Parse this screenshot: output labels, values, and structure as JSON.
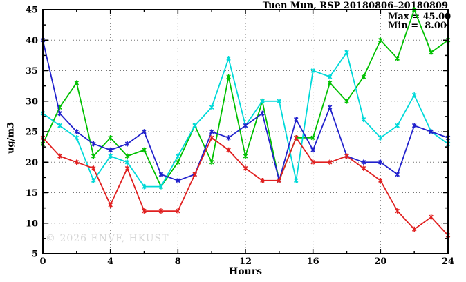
{
  "title": "Tuen Mun, RSP 20180806–20180809",
  "legend": {
    "max_label": "Max = 45.00",
    "min_label": "Min =  8.00"
  },
  "watermark": "© 2026 ENVF, HKUST",
  "colors": {
    "green": "#00c000",
    "cyan": "#00d9d9",
    "blue": "#2121cc",
    "red": "#e02020",
    "grid": "#777777",
    "frame": "#000000",
    "watermark_gray": "#d6d6d6"
  },
  "chart_data": {
    "type": "line",
    "title": "Tuen Mun, RSP 20180806–20180809",
    "xlabel": "Hours",
    "ylabel": "ug/m3",
    "xlim": [
      0,
      24
    ],
    "ylim": [
      5,
      45
    ],
    "x_major_ticks": [
      0,
      4,
      8,
      12,
      16,
      20,
      24
    ],
    "x_minor_ticks": [
      2,
      6,
      10,
      14,
      18,
      22
    ],
    "y_major_ticks": [
      5,
      10,
      15,
      20,
      25,
      30,
      35,
      40,
      45
    ],
    "y_minor_ticks": [
      7.5,
      12.5,
      17.5,
      22.5,
      27.5,
      32.5,
      37.5,
      42.5
    ],
    "grid_x_lines": [
      4,
      8,
      12,
      16,
      20
    ],
    "grid_y_lines": [
      10,
      15,
      20,
      25,
      30,
      35,
      40
    ],
    "grid": "dotted",
    "legend_position": "top-right-inside",
    "marker": "asterisk",
    "x": [
      0,
      1,
      2,
      3,
      4,
      5,
      6,
      7,
      8,
      9,
      10,
      11,
      12,
      13,
      14,
      15,
      16,
      17,
      18,
      19,
      20,
      21,
      22,
      23,
      24
    ],
    "series": [
      {
        "name": "series-green",
        "color": "#00c000",
        "values": [
          23,
          29,
          33,
          21,
          24,
          21,
          22,
          16,
          20,
          26,
          20,
          34,
          21,
          30,
          17,
          24,
          24,
          33,
          30,
          34,
          40,
          37,
          45,
          38,
          40
        ]
      },
      {
        "name": "series-cyan",
        "color": "#00d9d9",
        "values": [
          28,
          26,
          24,
          17,
          21,
          20,
          16,
          16,
          21,
          26,
          29,
          37,
          26,
          30,
          30,
          17,
          35,
          34,
          38,
          27,
          24,
          26,
          31,
          25,
          23
        ]
      },
      {
        "name": "series-blue",
        "color": "#2121cc",
        "values": [
          40,
          28,
          25,
          23,
          22,
          23,
          25,
          18,
          17,
          18,
          25,
          24,
          26,
          28,
          17,
          27,
          22,
          29,
          21,
          20,
          20,
          18,
          26,
          25,
          24
        ]
      },
      {
        "name": "series-red",
        "color": "#e02020",
        "values": [
          24,
          21,
          20,
          19,
          13,
          19,
          12,
          12,
          12,
          18,
          24,
          22,
          19,
          17,
          17,
          24,
          20,
          20,
          21,
          19,
          17,
          12,
          9,
          11,
          8
        ]
      }
    ],
    "stats": {
      "max": 45.0,
      "min": 8.0
    }
  }
}
